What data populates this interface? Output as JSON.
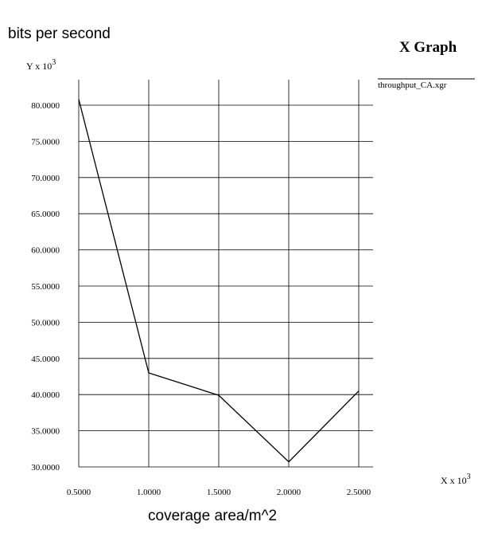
{
  "y_label_outer": "bits per second",
  "x_label_outer": "coverage area/m^2",
  "chart_data": {
    "type": "line",
    "title": "X Graph",
    "y_axis_tag": "Y x 10",
    "x_axis_tag": "X x 10",
    "axis_exponent": "3",
    "x": [
      0.5,
      1.0,
      1.5,
      2.0,
      2.5
    ],
    "x_tick_labels": [
      "0.5000",
      "1.0000",
      "1.5000",
      "2.0000",
      "2.5000"
    ],
    "y_ticks": [
      30,
      35,
      40,
      45,
      50,
      55,
      60,
      65,
      70,
      75,
      80
    ],
    "y_tick_labels": [
      "30.0000",
      "35.0000",
      "40.0000",
      "45.0000",
      "50.0000",
      "55.0000",
      "60.0000",
      "65.0000",
      "70.0000",
      "75.0000",
      "80.0000"
    ],
    "series": [
      {
        "name": "throughput_CA.xgr",
        "values": [
          80.8,
          43.0,
          39.9,
          30.7,
          40.5
        ]
      }
    ],
    "xlim": [
      0.5,
      2.5
    ],
    "ylim": [
      30,
      80
    ],
    "grid": true,
    "legend": "right",
    "colors": {
      "line": "#000000",
      "grid": "#000000",
      "background": "#ffffff"
    }
  }
}
